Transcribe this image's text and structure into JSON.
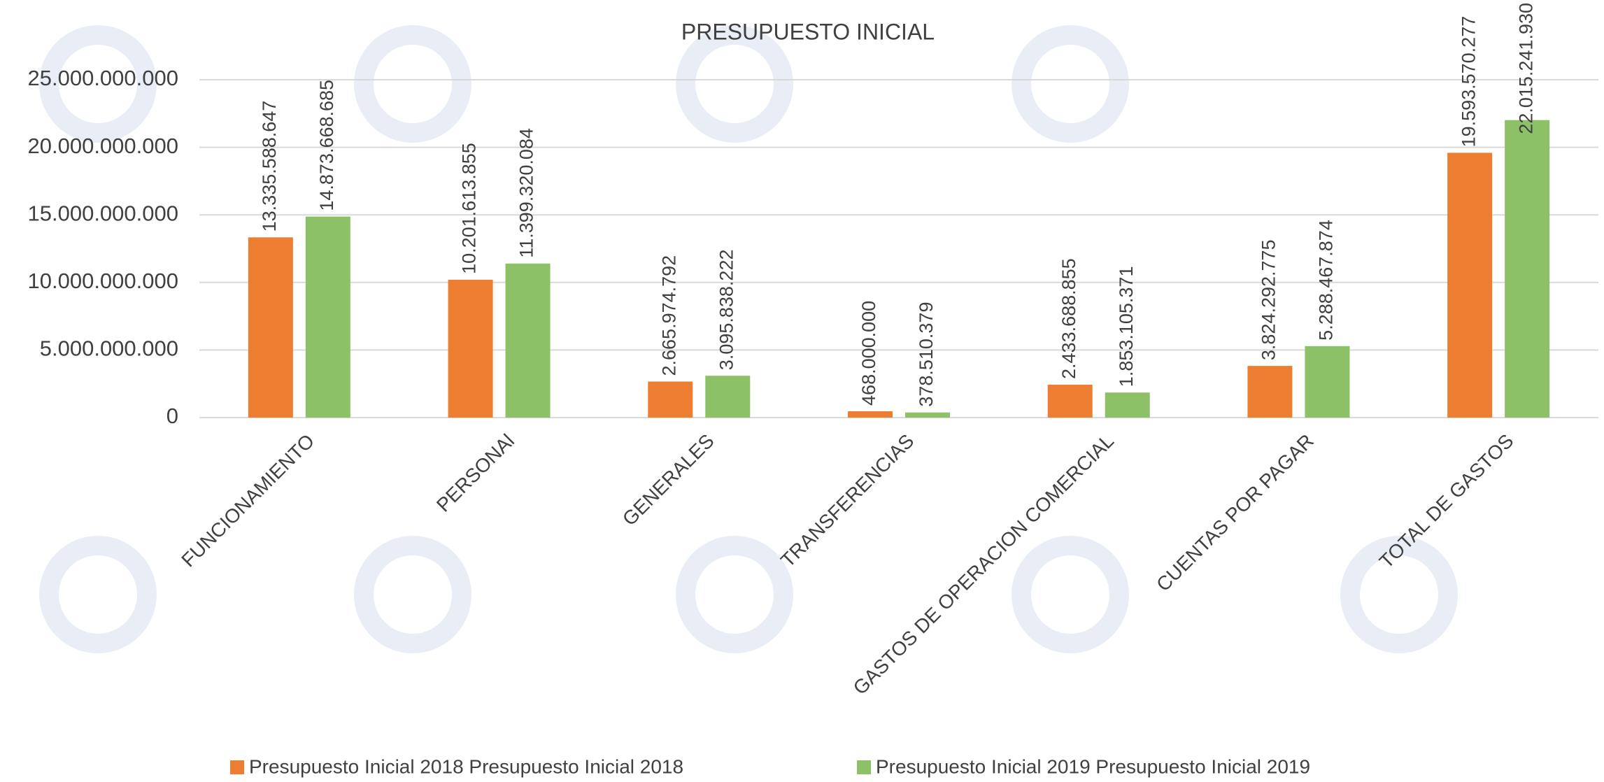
{
  "chart_data": {
    "type": "bar",
    "title": "PRESUPUESTO INICIAL",
    "categories": [
      "FUNCIONAMIENTO",
      "PERSONAl",
      "GENERALES",
      "TRANSFERENCIAS",
      "GASTOS DE OPERACION COMERCIAL",
      "CUENTAS POR PAGAR",
      "TOTAL DE GASTOS"
    ],
    "series": [
      {
        "name": "Presupuesto Inicial 2018 Presupuesto Inicial 2018",
        "color": "#ed7d31",
        "values": [
          13335588647,
          10201613855,
          2665974792,
          468000000,
          2433688855,
          3824292775,
          19593570277
        ],
        "value_labels": [
          "13.335.588.647",
          "10.201.613.855",
          "2.665.974.792",
          "468.000.000",
          "2.433.688.855",
          "3.824.292.775",
          "19.593.570.277"
        ]
      },
      {
        "name": "Presupuesto Inicial 2019 Presupuesto Inicial 2019",
        "color": "#8cc168",
        "values": [
          14873668685,
          11399320084,
          3095838222,
          378510379,
          1853105371,
          5288467874,
          22015241930
        ],
        "value_labels": [
          "14.873.668.685",
          "11.399.320.084",
          "3.095.838.222",
          "378.510.379",
          "1.853.105.371",
          "5.288.467.874",
          "22.015.241.930"
        ]
      }
    ],
    "ylim": [
      0,
      25000000000
    ],
    "yticks": [
      0,
      {
        "value": 5000000000,
        "label": "5.000.000.000"
      },
      {
        "value": 10000000000,
        "label": "10.000.000.000"
      },
      {
        "value": 15000000000,
        "label": "15.000.000.000"
      },
      {
        "value": 20000000000,
        "label": "20.000.000.000"
      },
      {
        "value": 25000000000,
        "label": "25.000.000.000"
      }
    ],
    "grid": true,
    "legend": "bottom"
  }
}
